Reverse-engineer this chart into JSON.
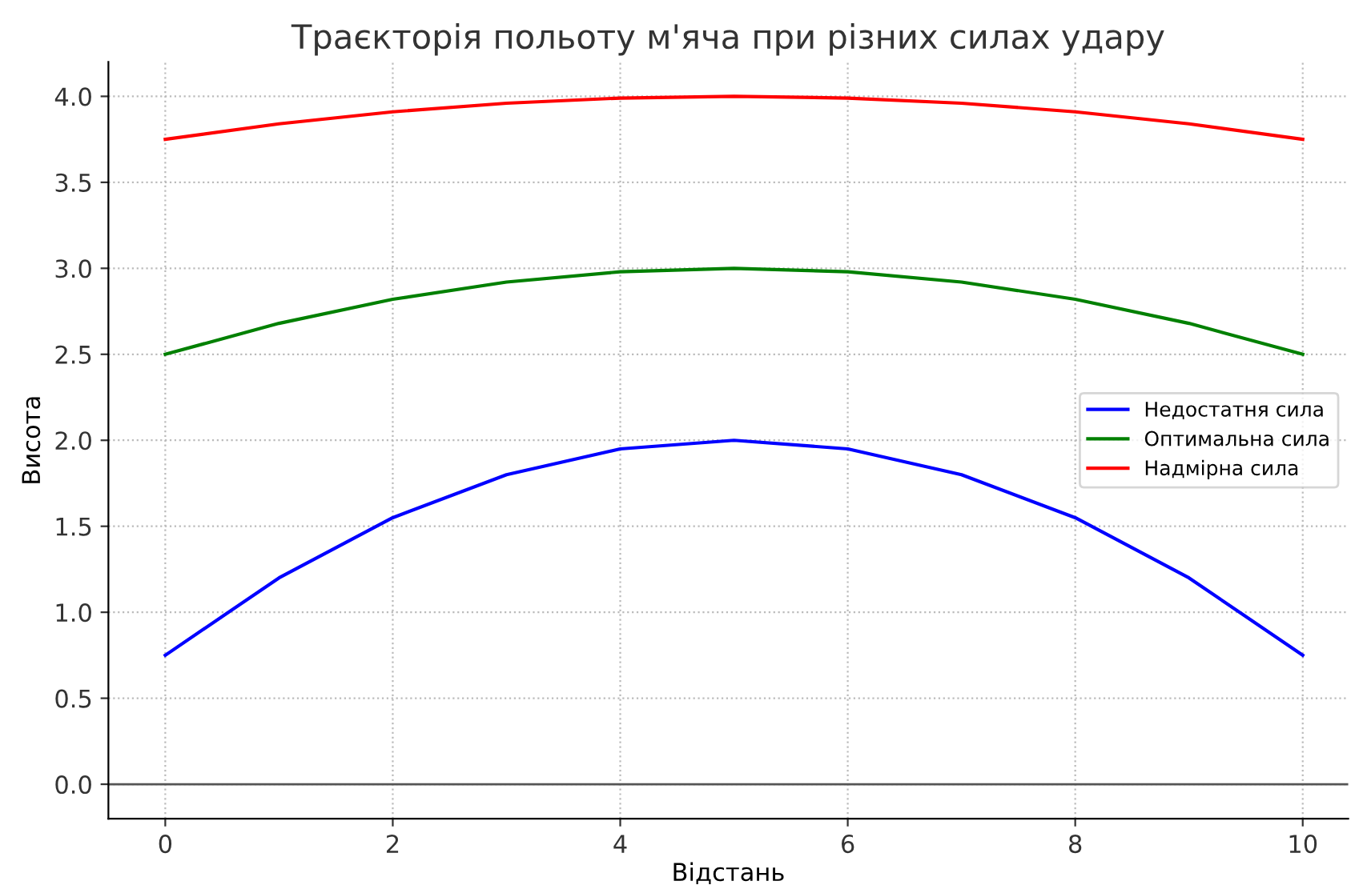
{
  "chart_data": {
    "type": "line",
    "title": "Траєкторія польоту м'яча при різних силах удару",
    "xlabel": "Відстань",
    "ylabel": "Висота",
    "x": [
      0,
      1,
      2,
      3,
      4,
      5,
      6,
      7,
      8,
      9,
      10
    ],
    "series": [
      {
        "name": "Недостатня сила",
        "color": "#0000ff",
        "values": [
          0.75,
          1.2,
          1.55,
          1.8,
          1.95,
          2.0,
          1.95,
          1.8,
          1.55,
          1.2,
          0.75
        ]
      },
      {
        "name": "Оптимальна сила",
        "color": "#008000",
        "values": [
          2.5,
          2.68,
          2.82,
          2.92,
          2.98,
          3.0,
          2.98,
          2.92,
          2.82,
          2.68,
          2.5
        ]
      },
      {
        "name": "Надмірна сила",
        "color": "#ff0000",
        "values": [
          3.75,
          3.84,
          3.91,
          3.96,
          3.99,
          4.0,
          3.99,
          3.96,
          3.91,
          3.84,
          3.75
        ]
      }
    ],
    "xlim": [
      -0.5,
      10.4
    ],
    "ylim": [
      -0.2,
      4.2
    ],
    "xticks": [
      0,
      2,
      4,
      6,
      8,
      10
    ],
    "yticks": [
      {
        "value": 0,
        "label": "0.0"
      },
      {
        "value": 0.5,
        "label": "0.5"
      },
      {
        "value": 1,
        "label": "1.0"
      },
      {
        "value": 1.5,
        "label": "1.5"
      },
      {
        "value": 2,
        "label": "2.0"
      },
      {
        "value": 2.5,
        "label": "2.5"
      },
      {
        "value": 3,
        "label": "3.0"
      },
      {
        "value": 3.5,
        "label": "3.5"
      },
      {
        "value": 4,
        "label": "4.0"
      }
    ],
    "ref_lines": [
      {
        "axis": "y",
        "value": 0,
        "color": "#555555"
      }
    ],
    "grid": true,
    "legend": "right",
    "line_style": "solid",
    "marker": "none"
  }
}
